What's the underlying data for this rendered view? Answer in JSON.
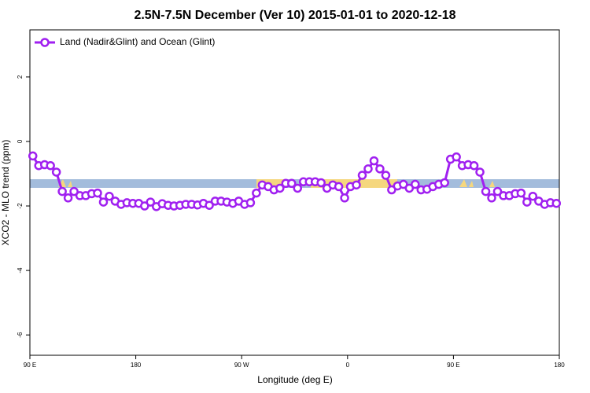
{
  "chart_data": {
    "type": "line",
    "title": "2.5N-7.5N December (Ver 10)   2015-01-01 to 2020-12-18",
    "xlabel": "Longitude (deg E)",
    "ylabel": "XCO2 - MLO trend (ppm)",
    "legend": "upper left",
    "xlim": [
      90,
      540
    ],
    "ylim": [
      -6.63,
      3.46
    ],
    "xticks": [
      {
        "value": 90,
        "label": "90 E"
      },
      180,
      {
        "value": 270,
        "label": "90 W"
      },
      {
        "value": 360,
        "label": "0"
      },
      {
        "value": 450,
        "label": "90 E"
      },
      {
        "value": 540,
        "label": "180"
      }
    ],
    "yticks": [
      -6,
      -4,
      -2,
      0,
      2
    ],
    "x": [
      92.5,
      97.5,
      102.5,
      107.5,
      112.5,
      117.5,
      122.5,
      127.5,
      132.5,
      137.5,
      142.5,
      147.5,
      152.5,
      157.5,
      162.5,
      167.5,
      172.5,
      177.5,
      182.5,
      187.5,
      192.5,
      197.5,
      202.5,
      207.5,
      212.5,
      217.5,
      222.5,
      227.5,
      232.5,
      237.5,
      242.5,
      247.5,
      252.5,
      257.5,
      262.5,
      267.5,
      272.5,
      277.5,
      282.5,
      287.5,
      292.5,
      297.5,
      302.5,
      307.5,
      312.5,
      317.5,
      322.5,
      327.5,
      332.5,
      337.5,
      342.5,
      347.5,
      352.5,
      357.5,
      362.5,
      367.5,
      372.5,
      377.5,
      382.5,
      387.5,
      392.5,
      397.5,
      402.5,
      407.5,
      412.5,
      417.5,
      422.5,
      427.5,
      432.5,
      437.5,
      442.5,
      447.5,
      452.5,
      457.5,
      462.5,
      467.5,
      472.5,
      477.5,
      482.5,
      487.5,
      492.5,
      497.5,
      502.5,
      507.5,
      512.5,
      517.5,
      522.5,
      527.5,
      532.5,
      537.5
    ],
    "series": [
      {
        "name": "Land (Nadir&Glint) and Ocean (Glint)",
        "color": "#a020f0",
        "values": [
          -0.45,
          -0.75,
          -0.72,
          -0.75,
          -0.95,
          -1.55,
          -1.75,
          -1.55,
          -1.68,
          -1.68,
          -1.62,
          -1.6,
          -1.88,
          -1.7,
          -1.85,
          -1.95,
          -1.9,
          -1.92,
          -1.92,
          -2.0,
          -1.88,
          -2.02,
          -1.93,
          -1.98,
          -2.0,
          -1.98,
          -1.95,
          -1.95,
          -1.97,
          -1.92,
          -1.98,
          -1.85,
          -1.85,
          -1.88,
          -1.92,
          -1.85,
          -1.95,
          -1.9,
          -1.6,
          -1.35,
          -1.4,
          -1.5,
          -1.45,
          -1.3,
          -1.3,
          -1.45,
          -1.25,
          -1.25,
          -1.25,
          -1.28,
          -1.45,
          -1.35,
          -1.4,
          -1.75,
          -1.4,
          -1.35,
          -1.05,
          -0.85,
          -0.6,
          -0.85,
          -1.05,
          -1.5,
          -1.38,
          -1.33,
          -1.45,
          -1.33,
          -1.5,
          -1.48,
          -1.4,
          -1.33,
          -1.28,
          -0.55,
          -0.48,
          -0.75,
          -0.72,
          -0.75,
          -0.95,
          -1.55,
          -1.75,
          -1.55,
          -1.68,
          -1.68,
          -1.62,
          -1.6,
          -1.88,
          -1.7,
          -1.85,
          -1.95,
          -1.9,
          -1.92
        ]
      }
    ]
  }
}
